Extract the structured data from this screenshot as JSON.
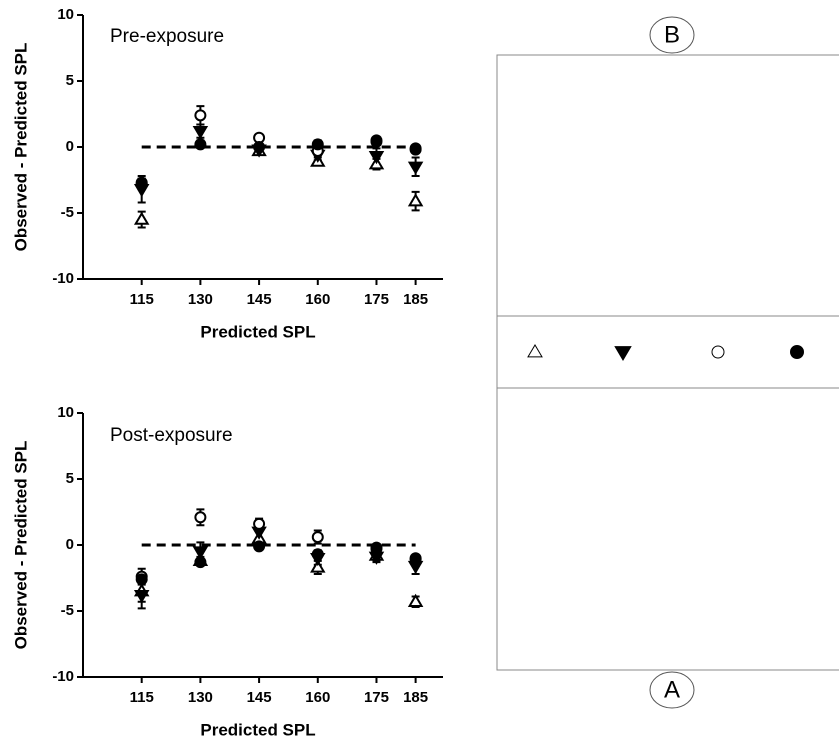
{
  "chart_data": [
    {
      "type": "scatter",
      "title": "Pre-exposure",
      "xlabel": "Predicted SPL",
      "ylabel": "Observed - Predicted SPL",
      "x": [
        115,
        130,
        145,
        160,
        175,
        185
      ],
      "xlim": [
        100,
        192
      ],
      "xticks": [
        115,
        130,
        145,
        160,
        175,
        185
      ],
      "ylim": [
        -10,
        10
      ],
      "yticks": [
        -10,
        -5,
        0,
        5,
        10
      ],
      "hline": 0,
      "series": [
        {
          "marker": "triangle-open",
          "color": "#000000",
          "values": [
            -5.5,
            0.3,
            -0.3,
            -1.1,
            -1.3,
            -4.1
          ],
          "errors": [
            0.6,
            0.2,
            0.3,
            0.3,
            0.4,
            0.7
          ]
        },
        {
          "marker": "triangle-down",
          "color": "#000000",
          "values": [
            -3.2,
            1.2,
            -0.2,
            -0.6,
            -0.7,
            -1.5
          ],
          "errors": [
            1.0,
            0.5,
            0.2,
            0.4,
            0.6,
            0.7
          ]
        },
        {
          "marker": "circle-open",
          "color": "#000000",
          "values": [
            -2.8,
            2.4,
            0.7,
            -0.3,
            0.4,
            -0.1
          ],
          "errors": [
            0.4,
            0.7,
            0.2,
            0.3,
            0.2,
            0.2
          ]
        },
        {
          "marker": "circle",
          "color": "#000000",
          "values": [
            -2.7,
            0.2,
            0.0,
            0.2,
            0.5,
            -0.2
          ],
          "errors": [
            0.3,
            0.2,
            0.2,
            0.3,
            0.2,
            0.2
          ]
        }
      ]
    },
    {
      "type": "scatter",
      "title": "Post-exposure",
      "xlabel": "Predicted SPL",
      "ylabel": "Observed - Predicted SPL",
      "x": [
        115,
        130,
        145,
        160,
        175,
        185
      ],
      "xlim": [
        100,
        192
      ],
      "xticks": [
        115,
        130,
        145,
        160,
        175,
        185
      ],
      "ylim": [
        -10,
        10
      ],
      "yticks": [
        -10,
        -5,
        0,
        5,
        10
      ],
      "hline": 0,
      "series": [
        {
          "marker": "triangle-open",
          "color": "#000000",
          "values": [
            -3.5,
            -1.2,
            0.5,
            -1.7,
            -0.8,
            -4.3
          ],
          "errors": [
            0.8,
            0.3,
            0.6,
            0.5,
            0.4,
            0.4
          ]
        },
        {
          "marker": "triangle-down",
          "color": "#000000",
          "values": [
            -3.8,
            -0.5,
            1.0,
            -1.0,
            -0.9,
            -1.6
          ],
          "errors": [
            1.0,
            0.7,
            0.6,
            0.5,
            0.4,
            0.6
          ]
        },
        {
          "marker": "circle-open",
          "color": "#000000",
          "values": [
            -2.4,
            2.1,
            1.6,
            0.6,
            -0.2,
            -1.0
          ],
          "errors": [
            0.6,
            0.6,
            0.4,
            0.5,
            0.2,
            0.2
          ]
        },
        {
          "marker": "circle",
          "color": "#000000",
          "values": [
            -2.6,
            -1.3,
            -0.1,
            -0.7,
            -0.3,
            -1.1
          ],
          "errors": [
            0.3,
            0.2,
            0.2,
            0.3,
            0.2,
            0.3
          ]
        }
      ]
    }
  ],
  "panel_labels": [
    "B",
    "A"
  ]
}
